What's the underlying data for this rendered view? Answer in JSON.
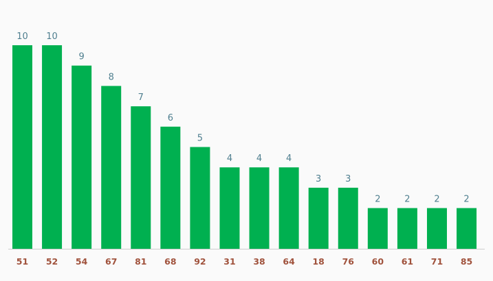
{
  "chart_data": {
    "type": "bar",
    "categories": [
      "51",
      "52",
      "54",
      "67",
      "81",
      "68",
      "92",
      "31",
      "38",
      "64",
      "18",
      "76",
      "60",
      "61",
      "71",
      "85"
    ],
    "values": [
      10,
      10,
      9,
      8,
      7,
      6,
      5,
      4,
      4,
      4,
      3,
      3,
      2,
      2,
      2,
      2
    ],
    "ylim": [
      0,
      10
    ],
    "grid": false,
    "legend": "none",
    "colors": {
      "bar": "#00b050",
      "value_label": "#4f7f8f",
      "category_label": "#a0523c",
      "axis_line": "#cccccc",
      "background": "#fafafa"
    }
  }
}
